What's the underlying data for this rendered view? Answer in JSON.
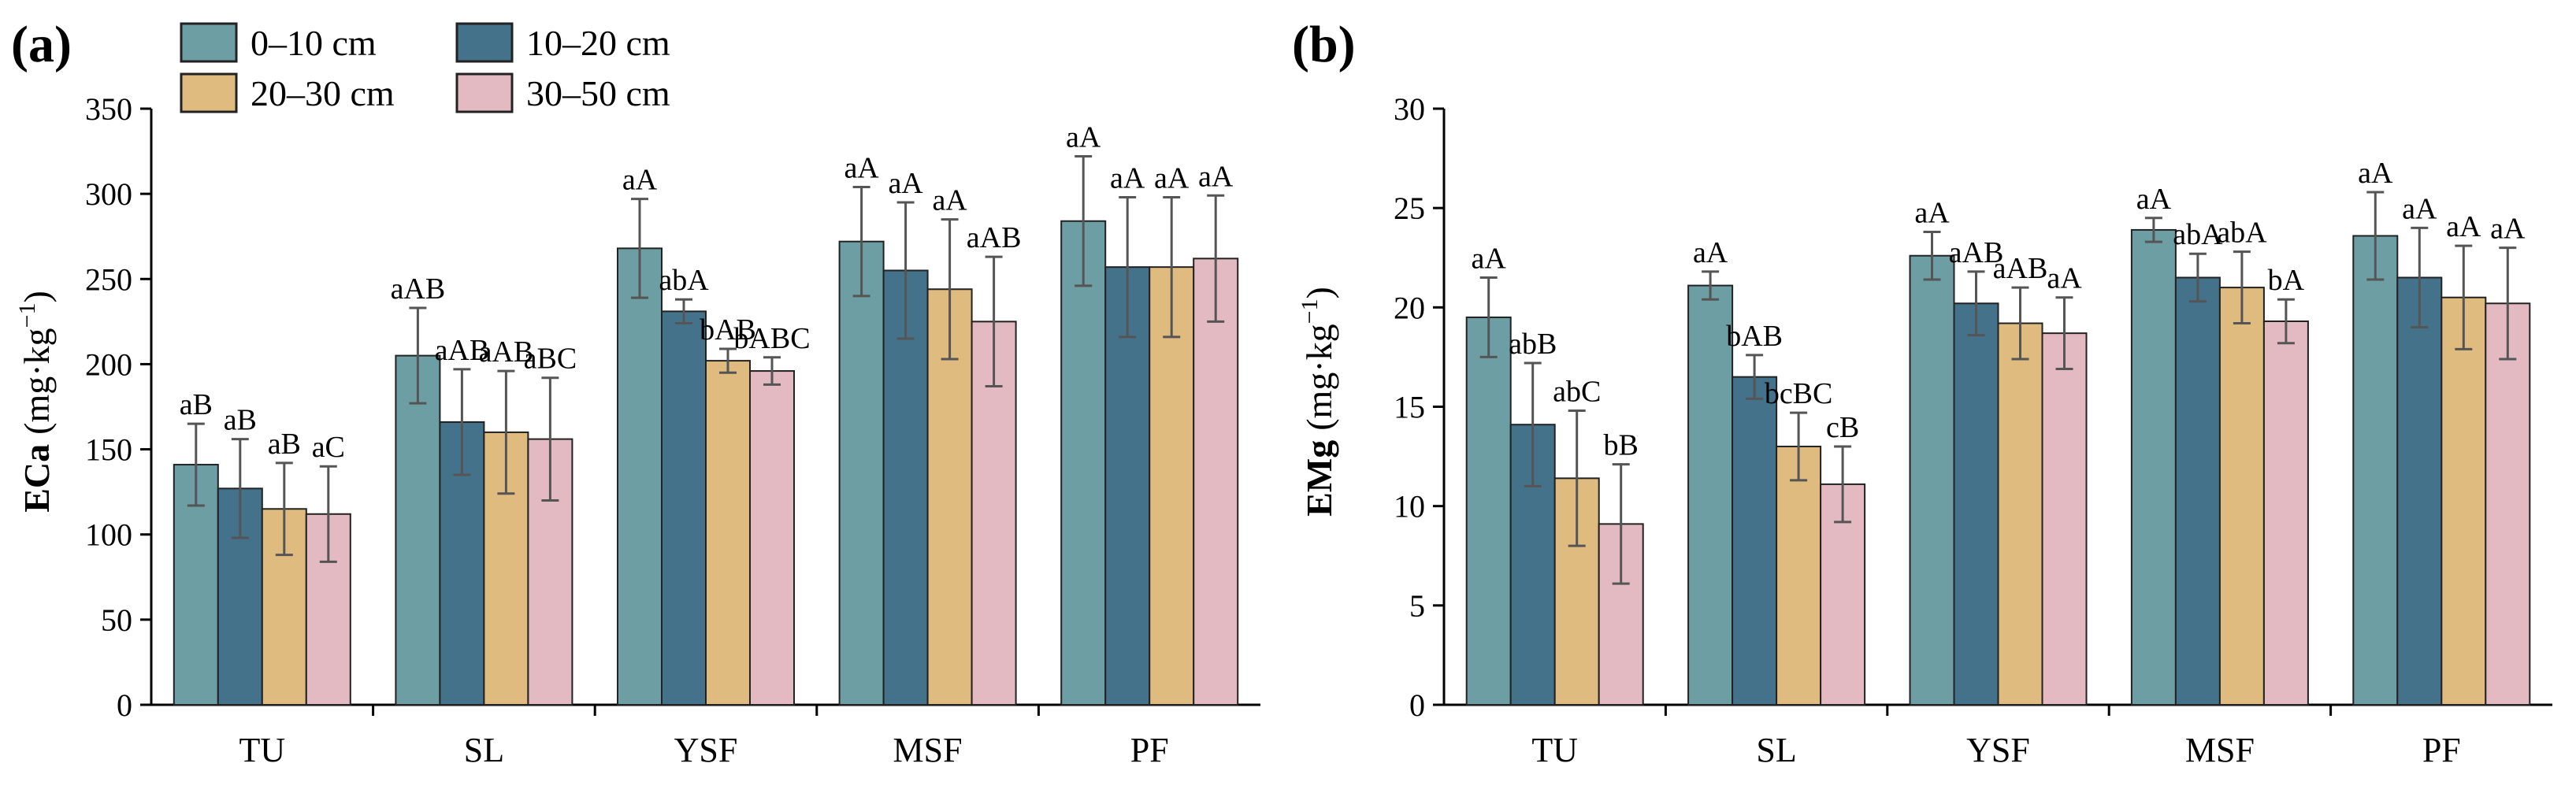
{
  "colors": {
    "s0": "#6c9ea4",
    "s1": "#43728a",
    "s2": "#dfbb80",
    "s3": "#e4bac2",
    "error": "#555555"
  },
  "legend": {
    "placement": "top-left",
    "entries": [
      "0–10 cm",
      "10–20 cm",
      "20–30 cm",
      "30–50 cm"
    ]
  },
  "chart_data": [
    {
      "type": "bar",
      "panel": "(a)",
      "ylabel_main": "ECa",
      "ylabel_unit": "(mg·kg",
      "ylabel_sup": "−1",
      "ylabel_close": ")",
      "ylim": [
        0,
        350
      ],
      "yticks": [
        0,
        50,
        100,
        150,
        200,
        250,
        300,
        350
      ],
      "categories": [
        "TU",
        "SL",
        "YSF",
        "MSF",
        "PF"
      ],
      "series": [
        {
          "name": "0–10 cm",
          "values": [
            141,
            205,
            268,
            272,
            284
          ],
          "errors": [
            24,
            28,
            29,
            32,
            38
          ],
          "labels": [
            "aB",
            "aAB",
            "aA",
            "aA",
            "aA"
          ]
        },
        {
          "name": "10–20 cm",
          "values": [
            127,
            166,
            231,
            255,
            257
          ],
          "errors": [
            29,
            31,
            7,
            40,
            41
          ],
          "labels": [
            "aB",
            "aAB",
            "abA",
            "aA",
            "aA"
          ]
        },
        {
          "name": "20–30 cm",
          "values": [
            115,
            160,
            202,
            244,
            257
          ],
          "errors": [
            27,
            36,
            7,
            41,
            41
          ],
          "labels": [
            "aB",
            "aAB",
            "bAB",
            "aA",
            "aA"
          ]
        },
        {
          "name": "30–50 cm",
          "values": [
            112,
            156,
            196,
            225,
            262
          ],
          "errors": [
            28,
            36,
            8,
            38,
            37
          ],
          "labels": [
            "aC",
            "aBC",
            "bABC",
            "aAB",
            "aA"
          ]
        }
      ]
    },
    {
      "type": "bar",
      "panel": "(b)",
      "ylabel_main": "EMg",
      "ylabel_unit": "(mg·kg",
      "ylabel_sup": "−1",
      "ylabel_close": ")",
      "ylim": [
        0,
        30
      ],
      "yticks": [
        0,
        5,
        10,
        15,
        20,
        25,
        30
      ],
      "categories": [
        "TU",
        "SL",
        "YSF",
        "MSF",
        "PF"
      ],
      "series": [
        {
          "name": "0–10 cm",
          "values": [
            19.5,
            21.1,
            22.6,
            23.9,
            23.6
          ],
          "errors": [
            2.0,
            0.7,
            1.2,
            0.6,
            2.2
          ],
          "labels": [
            "aA",
            "aA",
            "aA",
            "aA",
            "aA"
          ]
        },
        {
          "name": "10–20 cm",
          "values": [
            14.1,
            16.5,
            20.2,
            21.5,
            21.5
          ],
          "errors": [
            3.1,
            1.1,
            1.6,
            1.2,
            2.5
          ],
          "labels": [
            "abB",
            "bAB",
            "aAB",
            "abA",
            "aA"
          ]
        },
        {
          "name": "20–30 cm",
          "values": [
            11.4,
            13.0,
            19.2,
            21.0,
            20.5
          ],
          "errors": [
            3.4,
            1.7,
            1.8,
            1.8,
            2.6
          ],
          "labels": [
            "abC",
            "bcBC",
            "aAB",
            "abA",
            "aA"
          ]
        },
        {
          "name": "30–50 cm",
          "values": [
            9.1,
            11.1,
            18.7,
            19.3,
            20.2
          ],
          "errors": [
            3.0,
            1.9,
            1.8,
            1.1,
            2.8
          ],
          "labels": [
            "bB",
            "cB",
            "aA",
            "bA",
            "aA"
          ]
        }
      ]
    }
  ]
}
